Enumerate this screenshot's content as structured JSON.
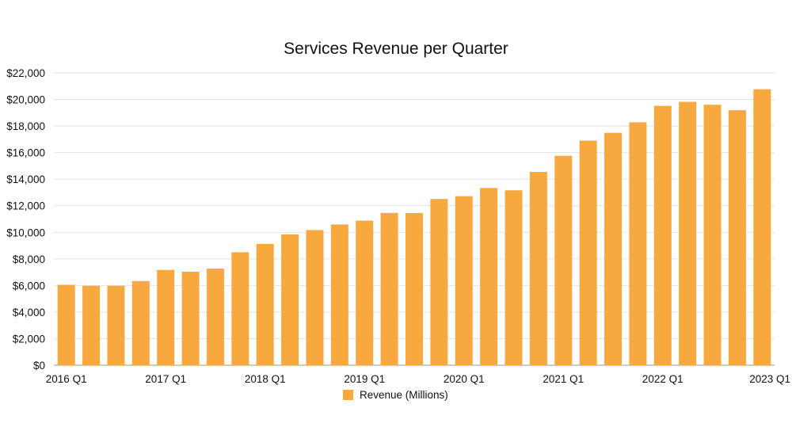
{
  "chart_data": {
    "type": "bar",
    "title": "Services Revenue per Quarter",
    "xlabel": "",
    "ylabel": "",
    "ylim": [
      0,
      22000
    ],
    "yticks": [
      0,
      2000,
      4000,
      6000,
      8000,
      10000,
      12000,
      14000,
      16000,
      18000,
      20000,
      22000
    ],
    "ytick_labels": [
      "$0",
      "$2,000",
      "$4,000",
      "$6,000",
      "$8,000",
      "$10,000",
      "$12,000",
      "$14,000",
      "$16,000",
      "$18,000",
      "$20,000",
      "$22,000"
    ],
    "categories": [
      "2016 Q1",
      "2016 Q2",
      "2016 Q3",
      "2016 Q4",
      "2017 Q1",
      "2017 Q2",
      "2017 Q3",
      "2017 Q4",
      "2018 Q1",
      "2018 Q2",
      "2018 Q3",
      "2018 Q4",
      "2019 Q1",
      "2019 Q2",
      "2019 Q3",
      "2019 Q4",
      "2020 Q1",
      "2020 Q2",
      "2020 Q3",
      "2020 Q4",
      "2021 Q1",
      "2021 Q2",
      "2021 Q3",
      "2021 Q4",
      "2022 Q1",
      "2022 Q2",
      "2022 Q3",
      "2022 Q4",
      "2023 Q1"
    ],
    "xtick_labels_shown": [
      "2016 Q1",
      "2017 Q1",
      "2018 Q1",
      "2019 Q1",
      "2020 Q1",
      "2021 Q1",
      "2022 Q1",
      "2023 Q1"
    ],
    "series": [
      {
        "name": "Revenue (Millions)",
        "color": "#F7A83E",
        "values": [
          6050,
          5980,
          5980,
          6330,
          7170,
          7040,
          7270,
          8500,
          9130,
          9850,
          10170,
          10590,
          10880,
          11460,
          11450,
          12510,
          12720,
          13340,
          13160,
          14550,
          15760,
          16900,
          17490,
          18280,
          19520,
          19820,
          19600,
          19190,
          20770
        ]
      }
    ],
    "grid": true,
    "legend_position": "bottom"
  }
}
